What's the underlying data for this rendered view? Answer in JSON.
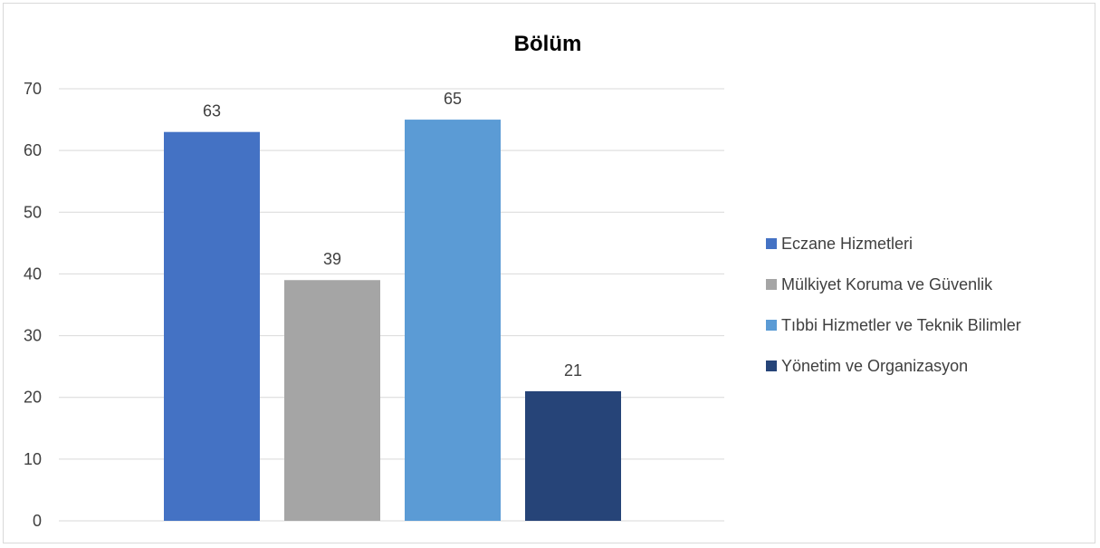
{
  "chart_data": {
    "type": "bar",
    "title": "Bölüm",
    "categories": [
      "Eczane Hizmetleri",
      "Mülkiyet Koruma ve Güvenlik",
      "Tıbbi Hizmetler ve Teknik Bilimler",
      "Yönetim ve Organizasyon"
    ],
    "values": [
      63,
      39,
      65,
      21
    ],
    "colors": [
      "#4472c4",
      "#a5a5a5",
      "#5b9bd5",
      "#264478"
    ],
    "ylim": [
      0,
      70
    ],
    "yticks": [
      "0",
      "10",
      "20",
      "30",
      "40",
      "50",
      "60",
      "70"
    ],
    "grid": true,
    "legend_position": "right",
    "data_labels": [
      "63",
      "39",
      "65",
      "21"
    ]
  }
}
